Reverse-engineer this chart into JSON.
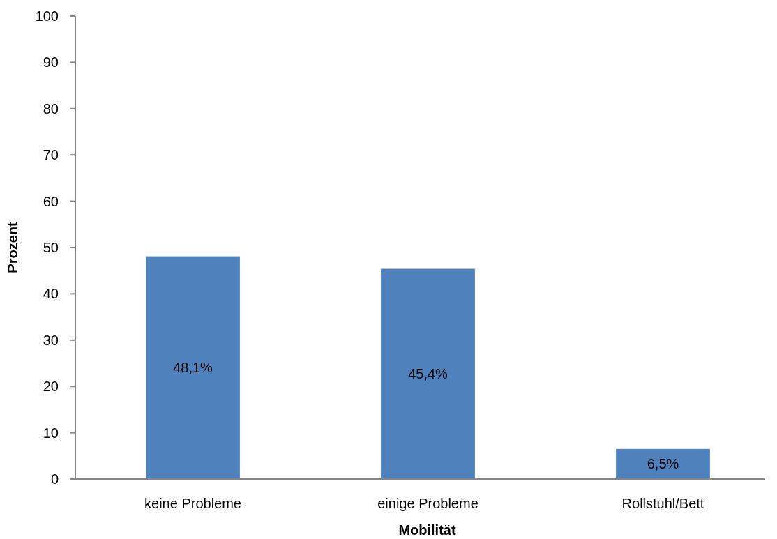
{
  "chart_data": {
    "type": "bar",
    "xlabel": "Mobilität",
    "ylabel": "Prozent",
    "categories": [
      "keine Probleme",
      "einige Probleme",
      "Rollstuhl/Bett"
    ],
    "values": [
      48.1,
      45.4,
      6.5
    ],
    "value_labels": [
      "48,1%",
      "45,4%",
      "6,5%"
    ],
    "color": "#4f81bd",
    "ylim": [
      0,
      100
    ],
    "yticks": [
      0,
      10,
      20,
      30,
      40,
      50,
      60,
      70,
      80,
      90,
      100
    ],
    "grid": false
  }
}
